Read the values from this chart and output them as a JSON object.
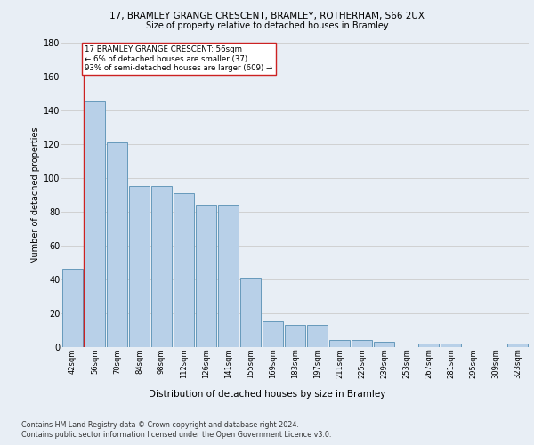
{
  "title1": "17, BRAMLEY GRANGE CRESCENT, BRAMLEY, ROTHERHAM, S66 2UX",
  "title2": "Size of property relative to detached houses in Bramley",
  "xlabel": "Distribution of detached houses by size in Bramley",
  "ylabel": "Number of detached properties",
  "categories": [
    "42sqm",
    "56sqm",
    "70sqm",
    "84sqm",
    "98sqm",
    "112sqm",
    "126sqm",
    "141sqm",
    "155sqm",
    "169sqm",
    "183sqm",
    "197sqm",
    "211sqm",
    "225sqm",
    "239sqm",
    "253sqm",
    "267sqm",
    "281sqm",
    "295sqm",
    "309sqm",
    "323sqm"
  ],
  "values": [
    46,
    145,
    121,
    95,
    95,
    91,
    84,
    84,
    41,
    15,
    13,
    13,
    4,
    4,
    3,
    0,
    2,
    2,
    0,
    0,
    2
  ],
  "bar_color": "#b8d0e8",
  "bar_edge_color": "#6699bb",
  "highlight_index": 1,
  "highlight_color": "#cc2222",
  "ylim": [
    0,
    180
  ],
  "yticks": [
    0,
    20,
    40,
    60,
    80,
    100,
    120,
    140,
    160,
    180
  ],
  "annotation_box_text": [
    "17 BRAMLEY GRANGE CRESCENT: 56sqm",
    "← 6% of detached houses are smaller (37)",
    "93% of semi-detached houses are larger (609) →"
  ],
  "footer1": "Contains HM Land Registry data © Crown copyright and database right 2024.",
  "footer2": "Contains public sector information licensed under the Open Government Licence v3.0.",
  "bg_color": "#e8eef5",
  "plot_bg_color": "#e8eef5"
}
